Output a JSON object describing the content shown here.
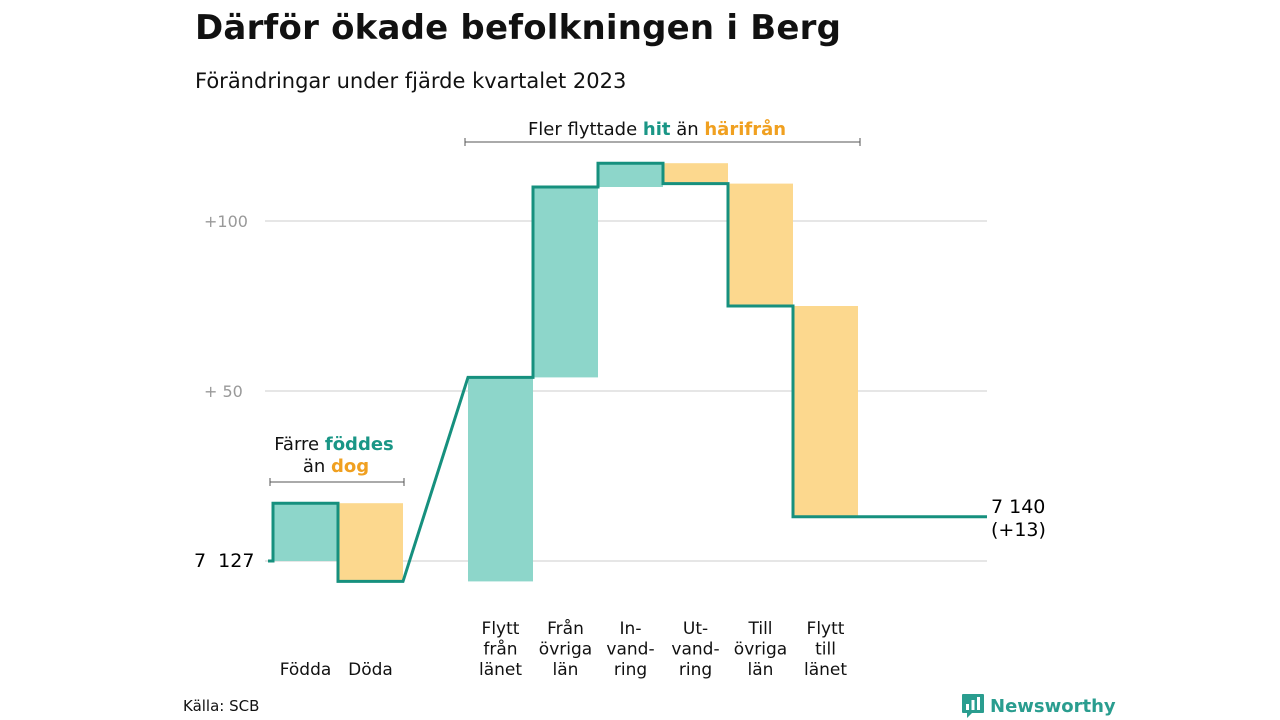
{
  "title": "Därför ökade befolkningen i Berg",
  "subtitle": "Förändringar under fjärde kvartalet 2023",
  "source": "Källa: SCB",
  "brand": {
    "name": "Newsworthy",
    "icon": "bar-chart-logo-icon"
  },
  "colors": {
    "increase_fill": "#8dd6ca",
    "decrease_fill": "#fcd88e",
    "line": "#16907e",
    "accent_teal": "#1a9686",
    "accent_orange": "#f0a020",
    "grid": "#dddddd",
    "axis_text": "#999999"
  },
  "annotations": {
    "migration": {
      "prefix": "Fler flyttade ",
      "hit": "hit",
      "middle": " än ",
      "harifran": "härifrån"
    },
    "natural": {
      "line1_prefix": "Färre ",
      "foddes": "föddes",
      "line2_prefix": "än ",
      "dog": "dog"
    }
  },
  "start_label": "7  127",
  "end_label": {
    "value": "7 140",
    "change": "(+13)"
  },
  "chart_data": {
    "type": "waterfall",
    "start_value": 7127,
    "end_value": 7140,
    "y_ticks": [
      {
        "value": 7227,
        "label": "+100"
      },
      {
        "value": 7177,
        "label": "+  50"
      }
    ],
    "steps": [
      {
        "label": [
          "Födda"
        ],
        "delta": 17
      },
      {
        "label": [
          "Döda"
        ],
        "delta": -23
      },
      {
        "label": [
          "Flytt",
          "från",
          "länet"
        ],
        "delta": 60
      },
      {
        "label": [
          "Från",
          "övriga",
          "län"
        ],
        "delta": 56
      },
      {
        "label": [
          "In-",
          "vand-",
          "ring"
        ],
        "delta": 7
      },
      {
        "label": [
          "Ut-",
          "vand-",
          "ring"
        ],
        "delta": -6
      },
      {
        "label": [
          "Till",
          "övriga",
          "län"
        ],
        "delta": -36
      },
      {
        "label": [
          "Flytt",
          "till",
          "länet"
        ],
        "delta": -62
      }
    ]
  }
}
